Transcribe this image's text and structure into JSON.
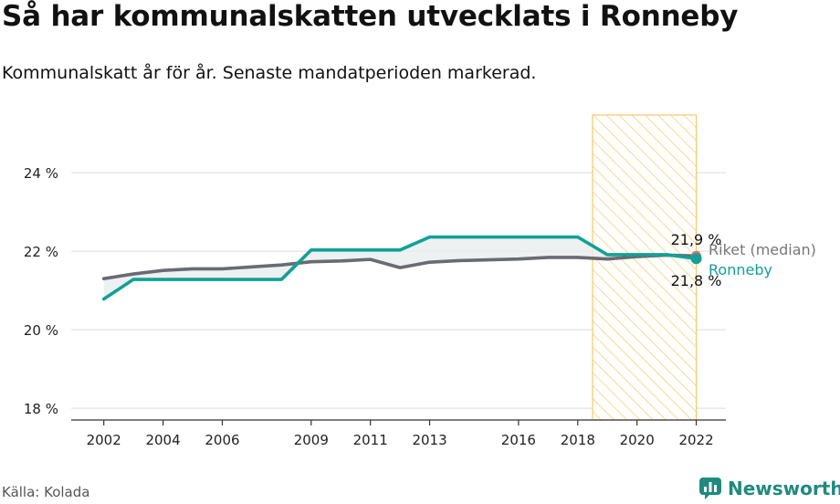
{
  "title": "Så har kommunalskatten utvecklats i Ronneby",
  "subtitle": "Kommunalskatt år för år. Senaste mandatperioden markerad.",
  "source": "Källa: Kolada",
  "brand": "Newsworthy",
  "colors": {
    "ronneby": "#12a096",
    "riket": "#6a6a72",
    "highlight": "#f7c863",
    "grid": "#dddddd"
  },
  "chart_data": {
    "type": "line",
    "x": [
      2002,
      2003,
      2004,
      2005,
      2006,
      2007,
      2008,
      2009,
      2010,
      2011,
      2012,
      2013,
      2014,
      2015,
      2016,
      2017,
      2018,
      2019,
      2020,
      2021,
      2022
    ],
    "series": [
      {
        "name": "Riket (median)",
        "values": [
          21.3,
          21.42,
          21.51,
          21.55,
          21.55,
          21.6,
          21.65,
          21.73,
          21.75,
          21.79,
          21.58,
          21.72,
          21.76,
          21.78,
          21.8,
          21.84,
          21.84,
          21.8,
          21.86,
          21.9,
          21.88
        ]
      },
      {
        "name": "Ronneby",
        "values": [
          20.78,
          21.28,
          21.28,
          21.28,
          21.28,
          21.28,
          21.28,
          22.03,
          22.03,
          22.03,
          22.03,
          22.36,
          22.36,
          22.36,
          22.36,
          22.36,
          22.36,
          21.91,
          21.91,
          21.91,
          21.81
        ]
      }
    ],
    "xticks": [
      2002,
      2004,
      2006,
      2009,
      2011,
      2013,
      2016,
      2018,
      2020,
      2022
    ],
    "yticks": [
      18,
      20,
      22,
      24
    ],
    "ytick_labels": [
      "18 %",
      "20 %",
      "22 %",
      "24 %"
    ],
    "ylim": [
      17.7,
      25.7
    ],
    "xlim": [
      2000.9,
      2023
    ],
    "highlight_period": [
      2018.5,
      2022
    ],
    "end_labels": {
      "riket_value": "21,9 %",
      "ronneby_value": "21,8 %"
    },
    "grid": true
  }
}
